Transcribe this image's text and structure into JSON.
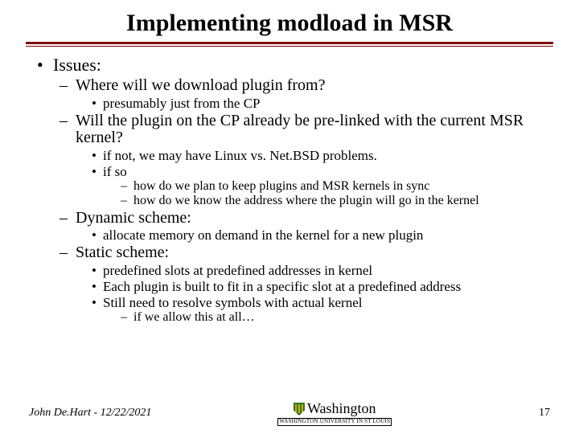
{
  "title": "Implementing modload in MSR",
  "colors": {
    "rule": "#800000",
    "text": "#000000",
    "background": "#ffffff"
  },
  "fonts": {
    "title_size": 30,
    "l1_size": 22,
    "l2_size": 20,
    "l3_size": 17,
    "l4_size": 16
  },
  "bullets": {
    "l1": "Issues:",
    "l2a": "Where will we download plugin from?",
    "l2a_l3a": "presumably just from the CP",
    "l2b": "Will the plugin on the CP already be pre-linked with the current MSR kernel?",
    "l2b_l3a": "if not, we may have Linux vs. Net.BSD problems.",
    "l2b_l3b": "if so",
    "l2b_l3b_l4a": "how do we plan to keep plugins and MSR kernels in sync",
    "l2b_l3b_l4b": "how do we know the address where the plugin will go in the kernel",
    "l2c": "Dynamic scheme:",
    "l2c_l3a": "allocate memory on demand in the kernel for a new plugin",
    "l2d": "Static scheme:",
    "l2d_l3a": "predefined slots at predefined addresses in kernel",
    "l2d_l3b": "Each plugin is built to fit in a specific slot at a predefined address",
    "l2d_l3c": "Still need to resolve symbols with actual kernel",
    "l2d_l3c_l4a": "if we allow this at all…"
  },
  "footer": {
    "left": "John De.Hart - 12/22/2021",
    "center_main": "Washington",
    "center_sub": "WASHINGTON UNIVERSITY IN ST LOUIS",
    "page": "17"
  }
}
